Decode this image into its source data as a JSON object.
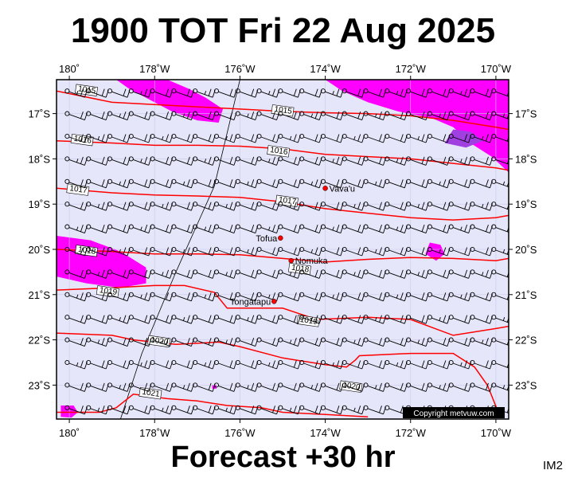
{
  "title": "1900 TOT Fri 22 Aug 2025",
  "footer": "Forecast +30 hr",
  "code": "IM2",
  "copyright": "Copyright metvuw.com",
  "colors": {
    "ocean": "#e6e6fa",
    "isobar": "#ff0000",
    "rain_light": "#ff00ff",
    "rain_heavy": "#a040e0",
    "wind": "#000000",
    "place_dot": "#ff0000"
  },
  "map": {
    "lon_min": -180.3,
    "lon_max": -169.7,
    "lat_min": -23.75,
    "lat_max": -16.25,
    "x_ticks": [
      {
        "lon": -180,
        "label": "180˚"
      },
      {
        "lon": -178,
        "label": "178˚W"
      },
      {
        "lon": -176,
        "label": "176˚W"
      },
      {
        "lon": -174,
        "label": "174˚W"
      },
      {
        "lon": -172,
        "label": "172˚W"
      },
      {
        "lon": -170,
        "label": "170˚W"
      }
    ],
    "y_ticks": [
      {
        "lat": -17,
        "label": "17˚S"
      },
      {
        "lat": -18,
        "label": "18˚S"
      },
      {
        "lat": -19,
        "label": "19˚S"
      },
      {
        "lat": -20,
        "label": "20˚S"
      },
      {
        "lat": -21,
        "label": "21˚S"
      },
      {
        "lat": -22,
        "label": "22˚S"
      },
      {
        "lat": -23,
        "label": "23˚S"
      }
    ],
    "places": [
      {
        "name": "Vava'u",
        "lon": -174.0,
        "lat": -18.65
      },
      {
        "name": "Tofua",
        "lon": -175.05,
        "lat": -19.75
      },
      {
        "name": "Nomuka",
        "lon": -174.8,
        "lat": -20.25
      },
      {
        "name": "Tongatapu",
        "lon": -175.2,
        "lat": -21.15
      }
    ],
    "isobars": [
      {
        "label": "1015",
        "label_at": [
          -179.8,
          -16.5
        ],
        "points": [
          [
            -180.3,
            -16.5
          ],
          [
            -179,
            -16.75
          ],
          [
            -177,
            -16.85
          ],
          [
            -176,
            -16.9
          ],
          [
            -175,
            -16.95
          ],
          [
            -174,
            -16.98
          ],
          [
            -173,
            -17.0
          ],
          [
            -172,
            -17.05
          ],
          [
            -171,
            -17.15
          ],
          [
            -170,
            -17.3
          ],
          [
            -169.7,
            -17.35
          ]
        ]
      },
      {
        "label": "1015",
        "label_at": [
          -175.2,
          -16.95
        ],
        "points": []
      },
      {
        "label": "1016",
        "label_at": [
          -179.9,
          -17.6
        ],
        "points": [
          [
            -180.3,
            -17.6
          ],
          [
            -179,
            -17.65
          ],
          [
            -178,
            -17.7
          ],
          [
            -177,
            -17.7
          ],
          [
            -176,
            -17.72
          ],
          [
            -175,
            -17.78
          ],
          [
            -174,
            -17.9
          ],
          [
            -173,
            -17.95
          ],
          [
            -172,
            -18.0
          ],
          [
            -171,
            -18.1
          ],
          [
            -170,
            -18.2
          ],
          [
            -169.7,
            -18.25
          ]
        ]
      },
      {
        "label": "1016",
        "label_at": [
          -175.3,
          -17.85
        ],
        "points": []
      },
      {
        "label": "1017",
        "label_at": [
          -180.0,
          -18.7
        ],
        "points": [
          [
            -180.3,
            -18.65
          ],
          [
            -179,
            -18.75
          ],
          [
            -178,
            -18.8
          ],
          [
            -177,
            -18.82
          ],
          [
            -176,
            -18.85
          ],
          [
            -175,
            -18.95
          ],
          [
            -174,
            -19.1
          ],
          [
            -173,
            -19.2
          ],
          [
            -172,
            -19.3
          ],
          [
            -171,
            -19.35
          ],
          [
            -170,
            -19.3
          ],
          [
            -169.7,
            -19.25
          ]
        ]
      },
      {
        "label": "1017",
        "label_at": [
          -175.1,
          -18.95
        ],
        "points": []
      },
      {
        "label": "1018",
        "label_at": [
          -179.8,
          -20.05
        ],
        "points": [
          [
            -180.3,
            -20.0
          ],
          [
            -179,
            -20.05
          ],
          [
            -178,
            -20.1
          ],
          [
            -177,
            -20.1
          ],
          [
            -176,
            -20.12
          ],
          [
            -175,
            -20.2
          ],
          [
            -174,
            -20.28
          ],
          [
            -173,
            -20.22
          ],
          [
            -172,
            -20.18
          ],
          [
            -171,
            -20.2
          ],
          [
            -170,
            -20.25
          ],
          [
            -169.7,
            -20.2
          ]
        ]
      },
      {
        "label": "1018",
        "label_at": [
          -174.8,
          -20.45
        ],
        "points": []
      },
      {
        "label": "1019",
        "label_at": [
          -179.3,
          -20.95
        ],
        "points": [
          [
            -180.3,
            -20.9
          ],
          [
            -179,
            -20.85
          ],
          [
            -178,
            -20.8
          ],
          [
            -177.3,
            -20.8
          ],
          [
            -176.6,
            -20.95
          ],
          [
            -176.3,
            -21.3
          ],
          [
            -175.5,
            -21.3
          ],
          [
            -175,
            -21.3
          ],
          [
            -174.2,
            -21.55
          ],
          [
            -173,
            -21.5
          ],
          [
            -172,
            -21.55
          ],
          [
            -171,
            -21.9
          ],
          [
            -170,
            -21.75
          ],
          [
            -169.7,
            -21.7
          ]
        ]
      },
      {
        "label": "1019",
        "label_at": [
          -174.6,
          -21.6
        ],
        "points": []
      },
      {
        "label": "1020",
        "label_at": [
          -178.1,
          -22.05
        ],
        "points": [
          [
            -180.3,
            -21.85
          ],
          [
            -179,
            -21.9
          ],
          [
            -178.5,
            -22.0
          ],
          [
            -177.5,
            -22.1
          ],
          [
            -176.5,
            -22.05
          ],
          [
            -176,
            -22.15
          ],
          [
            -175,
            -22.4
          ],
          [
            -174,
            -22.55
          ],
          [
            -173.5,
            -22.6
          ],
          [
            -173.3,
            -22.45
          ],
          [
            -173.2,
            -22.35
          ],
          [
            -172,
            -22.3
          ],
          [
            -171,
            -22.3
          ],
          [
            -170.5,
            -22.6
          ],
          [
            -170.2,
            -23.0
          ],
          [
            -169.9,
            -23.7
          ]
        ]
      },
      {
        "label": "1020",
        "label_at": [
          -173.6,
          -23.05
        ],
        "points": []
      },
      {
        "label": "1021",
        "label_at": [
          -178.3,
          -23.2
        ],
        "points": [
          [
            -180.3,
            -23.6
          ],
          [
            -179.3,
            -23.6
          ],
          [
            -178.9,
            -23.5
          ],
          [
            -178.5,
            -23.2
          ],
          [
            -177.7,
            -23.3
          ],
          [
            -177,
            -23.35
          ],
          [
            -176.3,
            -23.45
          ],
          [
            -175.5,
            -23.5
          ],
          [
            -175,
            -23.6
          ],
          [
            -174,
            -23.65
          ],
          [
            -173,
            -23.7
          ]
        ]
      }
    ],
    "rain_areas": [
      {
        "level": "light",
        "points": [
          [
            -177.7,
            -16.25
          ],
          [
            -177.2,
            -16.45
          ],
          [
            -176.8,
            -16.65
          ],
          [
            -176.4,
            -16.9
          ],
          [
            -176.5,
            -17.2
          ],
          [
            -177.0,
            -17.15
          ],
          [
            -177.6,
            -16.95
          ],
          [
            -178.1,
            -16.7
          ],
          [
            -178.6,
            -16.45
          ],
          [
            -178.9,
            -16.25
          ]
        ]
      },
      {
        "level": "light",
        "points": [
          [
            -174.0,
            -16.25
          ],
          [
            -173.6,
            -16.5
          ],
          [
            -173.0,
            -16.75
          ],
          [
            -172.3,
            -16.95
          ],
          [
            -171.5,
            -17.1
          ],
          [
            -171.0,
            -17.3
          ],
          [
            -170.6,
            -17.65
          ],
          [
            -170.1,
            -17.95
          ],
          [
            -169.7,
            -18.3
          ],
          [
            -169.7,
            -16.25
          ]
        ]
      },
      {
        "level": "heavy",
        "points": [
          [
            -171.0,
            -17.35
          ],
          [
            -170.6,
            -17.4
          ],
          [
            -170.3,
            -17.6
          ],
          [
            -170.7,
            -17.75
          ],
          [
            -171.2,
            -17.65
          ]
        ]
      },
      {
        "level": "light",
        "points": [
          [
            -180.3,
            -19.7
          ],
          [
            -179.5,
            -19.8
          ],
          [
            -178.8,
            -20.05
          ],
          [
            -178.2,
            -20.4
          ],
          [
            -178.2,
            -20.75
          ],
          [
            -178.8,
            -20.85
          ],
          [
            -179.6,
            -20.75
          ],
          [
            -180.3,
            -20.6
          ]
        ]
      },
      {
        "level": "light",
        "points": [
          [
            -171.55,
            -19.85
          ],
          [
            -171.3,
            -19.9
          ],
          [
            -171.2,
            -20.1
          ],
          [
            -171.4,
            -20.25
          ],
          [
            -171.65,
            -20.1
          ]
        ]
      },
      {
        "level": "light",
        "points": [
          [
            -176.65,
            -23.0
          ],
          [
            -176.55,
            -23.0
          ],
          [
            -176.55,
            -23.08
          ],
          [
            -176.65,
            -23.08
          ]
        ]
      },
      {
        "level": "light",
        "points": [
          [
            -180.2,
            -23.45
          ],
          [
            -179.9,
            -23.45
          ],
          [
            -179.8,
            -23.6
          ],
          [
            -179.95,
            -23.72
          ],
          [
            -180.2,
            -23.7
          ]
        ]
      }
    ],
    "date_line": [
      [
        -176.0,
        -16.25
      ],
      [
        -176.6,
        -18.6
      ],
      [
        -177.5,
        -20.5
      ],
      [
        -178.3,
        -22.3
      ],
      [
        -178.8,
        -23.75
      ]
    ]
  }
}
